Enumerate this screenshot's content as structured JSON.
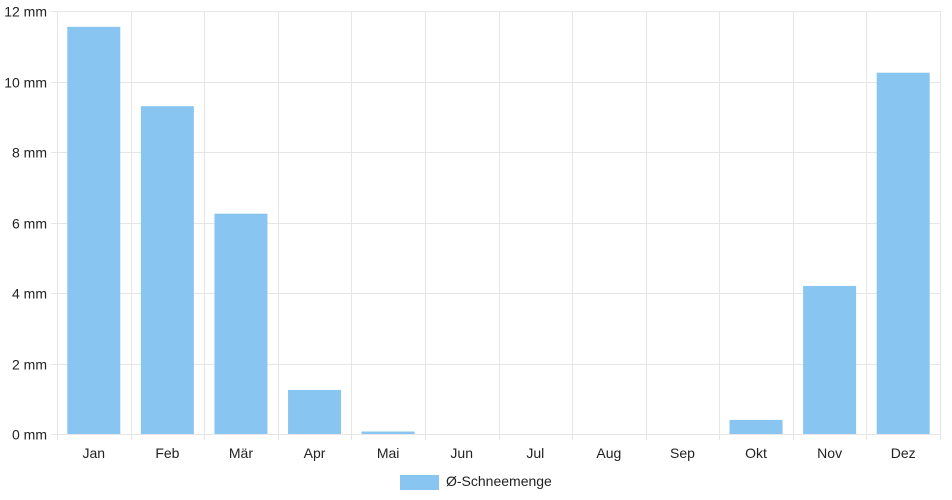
{
  "chart_data": {
    "type": "bar",
    "categories": [
      "Jan",
      "Feb",
      "Mär",
      "Apr",
      "Mai",
      "Jun",
      "Jul",
      "Aug",
      "Sep",
      "Okt",
      "Nov",
      "Dez"
    ],
    "series": [
      {
        "name": "Ø-Schneemenge",
        "values": [
          11.55,
          9.3,
          6.25,
          1.25,
          0.07,
          0,
          0,
          0,
          0,
          0.4,
          4.2,
          10.25
        ],
        "color": "#88c5f1"
      }
    ],
    "y_unit": "mm",
    "ylim": [
      0,
      12
    ],
    "y_ticks": [
      0,
      2,
      4,
      6,
      8,
      10,
      12
    ],
    "y_tick_labels": [
      "0 mm",
      "2 mm",
      "4 mm",
      "6 mm",
      "8 mm",
      "10 mm",
      "12 mm"
    ],
    "grid": true,
    "legend_position": "bottom-center",
    "grid_color": "#e6e6e6"
  }
}
